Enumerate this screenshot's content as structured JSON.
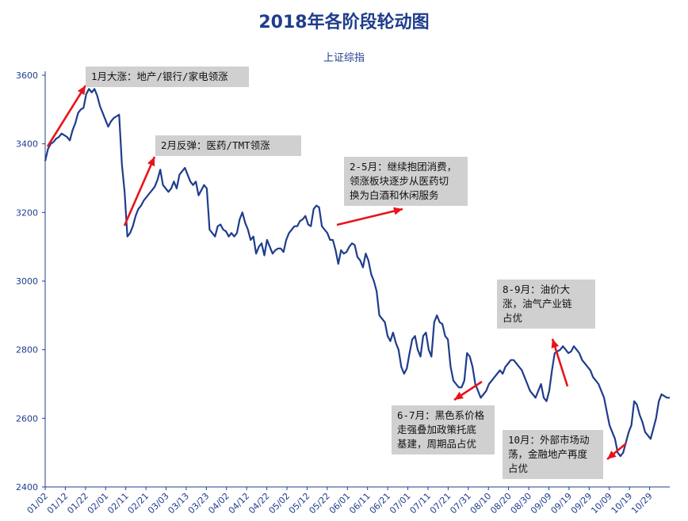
{
  "chart_data": {
    "type": "line",
    "title": "2018年各阶段轮动图",
    "subtitle": "上证综指",
    "ylim": [
      2400,
      3600
    ],
    "yticks": [
      2400,
      2600,
      2800,
      3000,
      3200,
      3400,
      3600
    ],
    "xtick_labels": [
      "01/02",
      "01/12",
      "01/22",
      "02/01",
      "02/11",
      "02/21",
      "03/03",
      "03/13",
      "03/23",
      "04/02",
      "04/12",
      "04/22",
      "05/02",
      "05/12",
      "05/22",
      "06/01",
      "06/11",
      "06/21",
      "07/01",
      "07/11",
      "07/21",
      "07/31",
      "08/10",
      "08/20",
      "08/30",
      "09/09",
      "09/19",
      "09/29",
      "10/09",
      "10/19",
      "10/29"
    ],
    "series": [
      {
        "color": "#1f3d8c",
        "values": [
          3350,
          3385,
          3400,
          3405,
          3415,
          3420,
          3430,
          3425,
          3420,
          3410,
          3440,
          3460,
          3490,
          3500,
          3505,
          3545,
          3560,
          3550,
          3560,
          3540,
          3510,
          3490,
          3470,
          3450,
          3465,
          3475,
          3480,
          3485,
          3340,
          3260,
          3130,
          3140,
          3160,
          3190,
          3210,
          3220,
          3235,
          3245,
          3255,
          3265,
          3275,
          3295,
          3325,
          3280,
          3270,
          3260,
          3270,
          3290,
          3270,
          3310,
          3320,
          3330,
          3310,
          3290,
          3280,
          3290,
          3250,
          3265,
          3280,
          3270,
          3150,
          3140,
          3130,
          3160,
          3165,
          3150,
          3145,
          3130,
          3140,
          3130,
          3140,
          3180,
          3200,
          3170,
          3150,
          3120,
          3130,
          3080,
          3100,
          3110,
          3075,
          3120,
          3100,
          3080,
          3090,
          3095,
          3095,
          3085,
          3120,
          3140,
          3150,
          3160,
          3160,
          3175,
          3180,
          3190,
          3165,
          3160,
          3210,
          3220,
          3215,
          3160,
          3150,
          3140,
          3120,
          3120,
          3090,
          3050,
          3090,
          3080,
          3085,
          3100,
          3110,
          3105,
          3070,
          3060,
          3040,
          3080,
          3060,
          3020,
          3000,
          2970,
          2900,
          2890,
          2880,
          2840,
          2825,
          2850,
          2820,
          2800,
          2750,
          2730,
          2745,
          2790,
          2830,
          2840,
          2800,
          2780,
          2840,
          2850,
          2800,
          2780,
          2880,
          2900,
          2880,
          2875,
          2840,
          2830,
          2750,
          2710,
          2700,
          2690,
          2690,
          2710,
          2790,
          2780,
          2750,
          2700,
          2680,
          2660,
          2670,
          2680,
          2700,
          2710,
          2720,
          2730,
          2740,
          2730,
          2750,
          2760,
          2770,
          2770,
          2760,
          2750,
          2740,
          2720,
          2700,
          2680,
          2670,
          2660,
          2680,
          2700,
          2660,
          2650,
          2680,
          2740,
          2790,
          2795,
          2800,
          2810,
          2800,
          2790,
          2795,
          2810,
          2800,
          2790,
          2770,
          2760,
          2750,
          2740,
          2720,
          2710,
          2700,
          2680,
          2660,
          2620,
          2580,
          2560,
          2540,
          2500,
          2490,
          2500,
          2530,
          2560,
          2580,
          2650,
          2640,
          2610,
          2590,
          2560,
          2550,
          2540,
          2570,
          2600,
          2650,
          2670,
          2665,
          2660,
          2660
        ]
      }
    ]
  },
  "annotations": [
    {
      "lines": [
        "1月大涨：地产/银行/家电领涨"
      ]
    },
    {
      "lines": [
        "2月反弹：医药/TMT领涨"
      ]
    },
    {
      "lines": [
        "2-5月：继续抱团消费，",
        "领涨板块逐步从医药切",
        "换为白酒和休闲服务"
      ]
    },
    {
      "lines": [
        "8-9月：油价大",
        "涨，油气产业链",
        "占优"
      ]
    },
    {
      "lines": [
        "6-7月：黑色系价格",
        "走强叠加政策托底",
        "基建，周期品占优"
      ]
    },
    {
      "lines": [
        "10月：外部市场动",
        "荡，金融地产再度",
        "占优"
      ]
    }
  ],
  "arrow_color": "#e8141b"
}
